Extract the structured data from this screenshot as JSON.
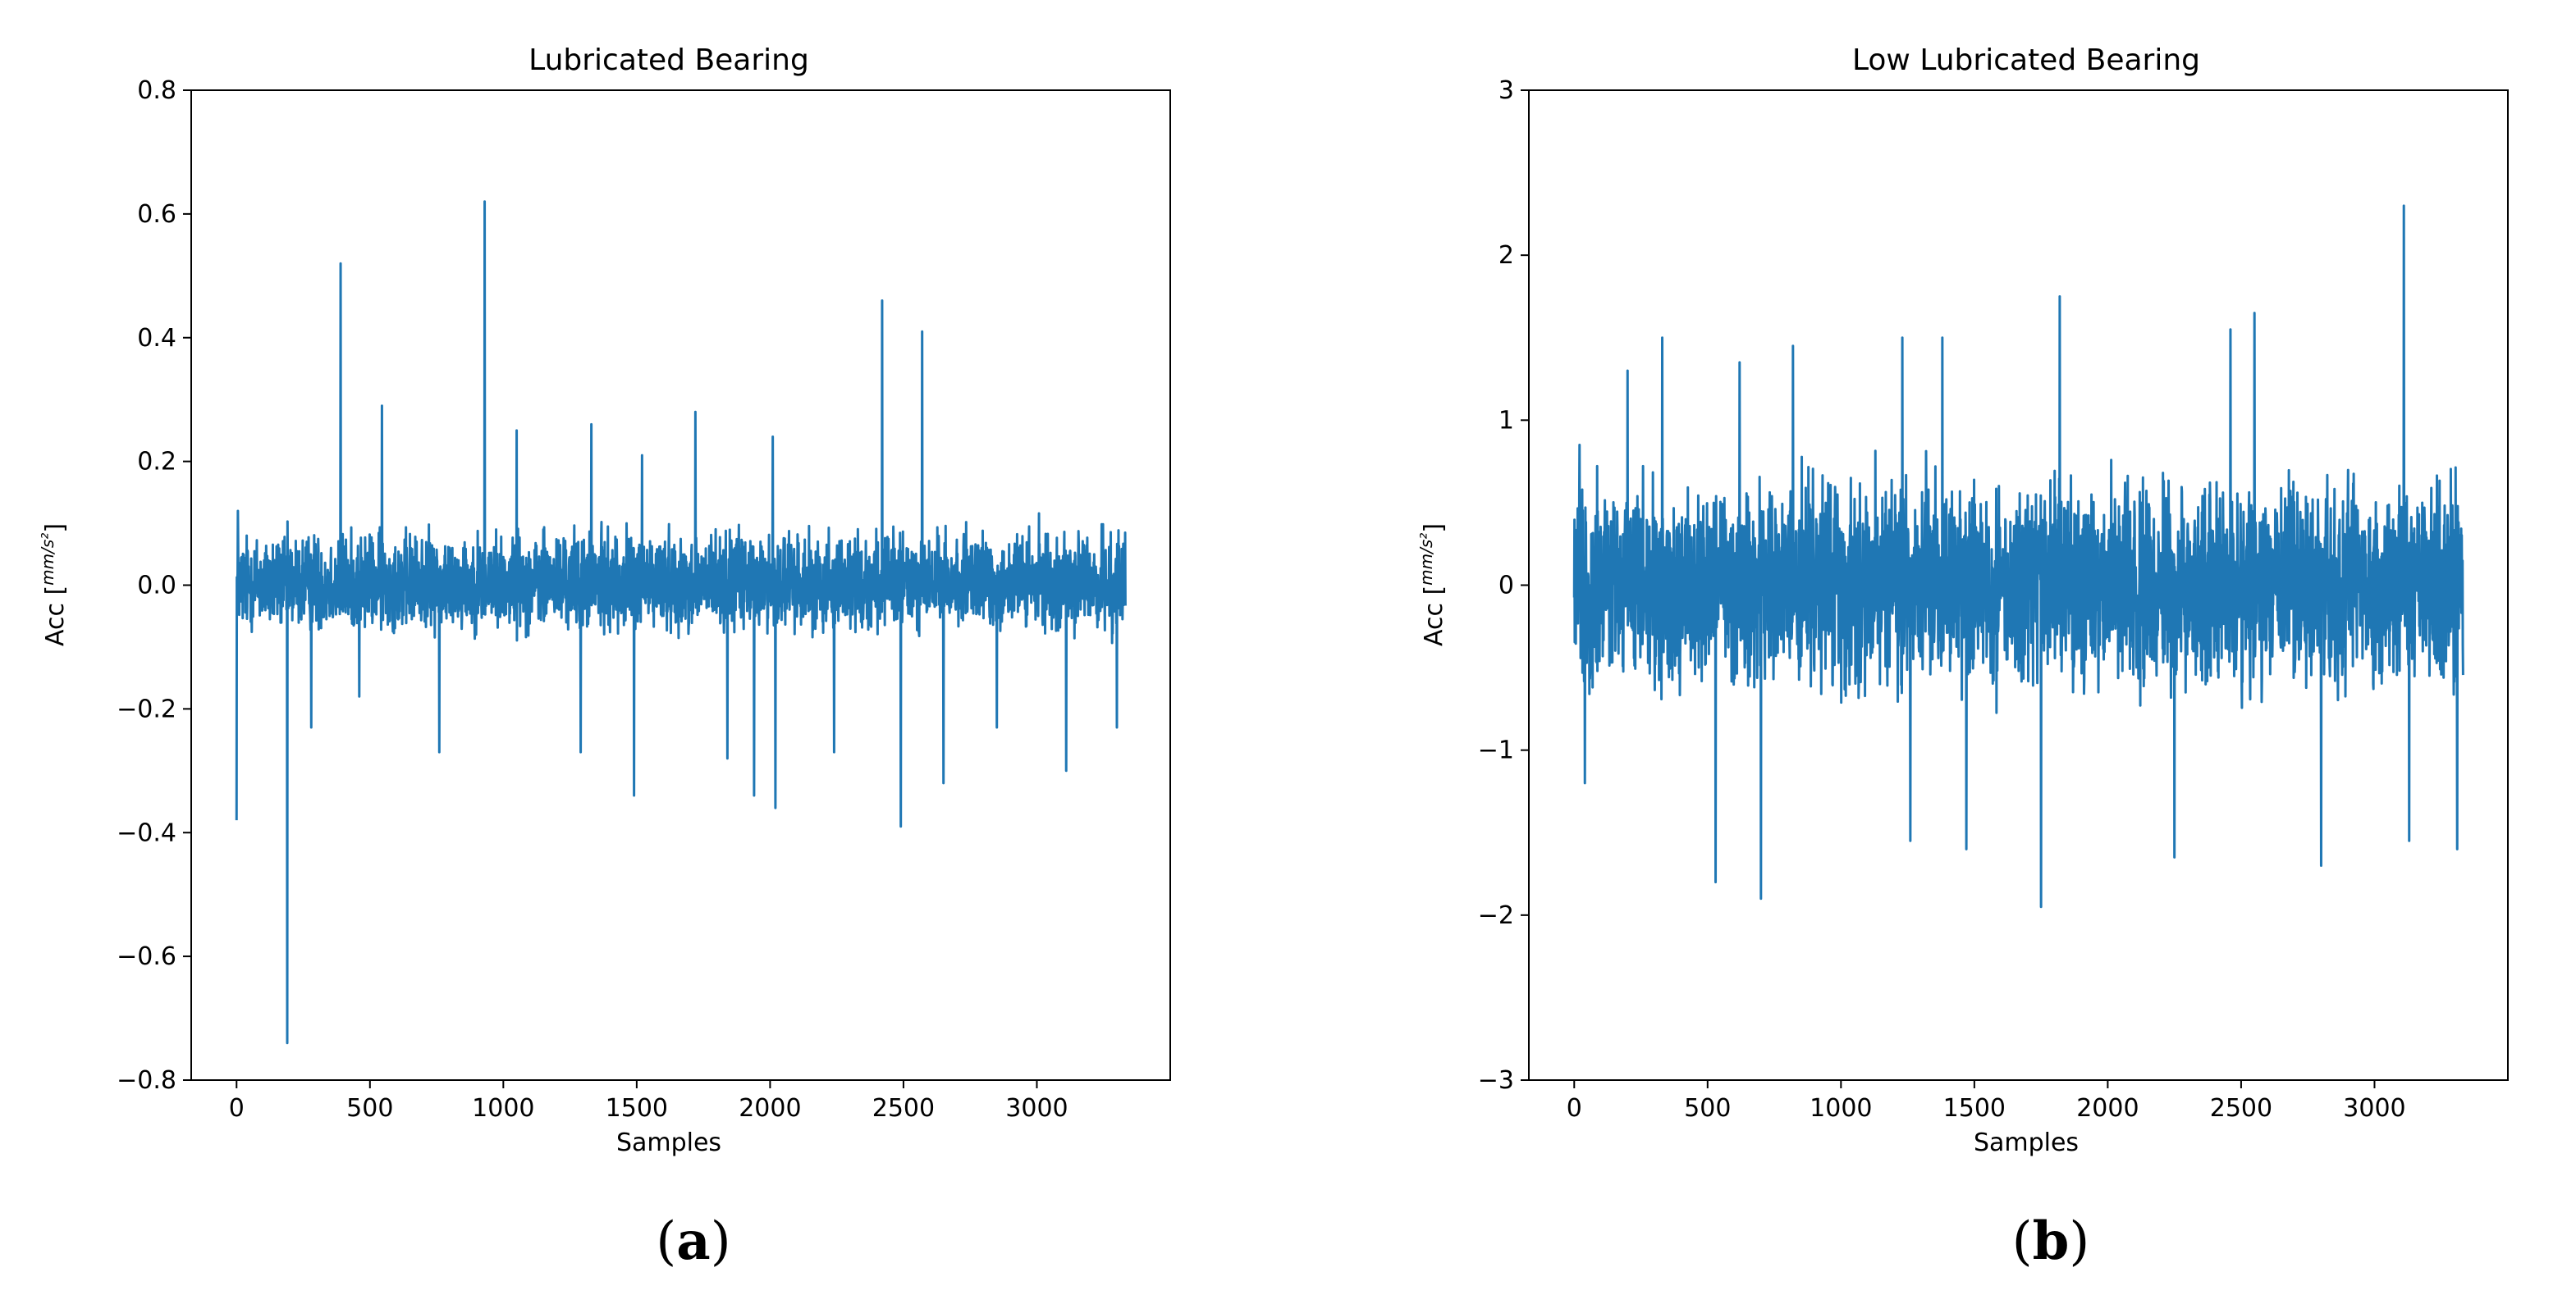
{
  "figure": {
    "captions": [
      "(a)",
      "(b)"
    ]
  },
  "chart_data": [
    {
      "type": "line",
      "title": "Lubricated Bearing",
      "xlabel": "Samples",
      "ylabel": "Acc [mm/s²]",
      "xlim": [
        -170,
        3500
      ],
      "ylim": [
        -0.8,
        0.8
      ],
      "xticks": [
        0,
        500,
        1000,
        1500,
        2000,
        2500,
        3000
      ],
      "xtick_labels": [
        "0",
        "500",
        "1000",
        "1500",
        "2000",
        "2500",
        "3000"
      ],
      "yticks": [
        -0.8,
        -0.6,
        -0.4,
        -0.2,
        0.0,
        0.2,
        0.4,
        0.6,
        0.8
      ],
      "ytick_labels": [
        "−0.8",
        "−0.6",
        "−0.4",
        "−0.2",
        "0.0",
        "0.2",
        "0.4",
        "0.6",
        "0.8"
      ],
      "color": "#1f77b4",
      "grid": false,
      "series": [
        {
          "name": "Lubricated Bearing",
          "n_samples": 3333,
          "noise_band": [
            -0.1,
            0.12
          ],
          "peaks": [
            [
              0,
              -0.38
            ],
            [
              5,
              0.12
            ],
            [
              190,
              -0.74
            ],
            [
              280,
              -0.23
            ],
            [
              390,
              0.52
            ],
            [
              460,
              -0.18
            ],
            [
              545,
              0.29
            ],
            [
              760,
              -0.27
            ],
            [
              930,
              0.62
            ],
            [
              1050,
              0.25
            ],
            [
              1290,
              -0.27
            ],
            [
              1330,
              0.26
            ],
            [
              1490,
              -0.34
            ],
            [
              1520,
              0.21
            ],
            [
              1720,
              0.28
            ],
            [
              1840,
              -0.28
            ],
            [
              1940,
              -0.34
            ],
            [
              2010,
              0.24
            ],
            [
              2020,
              -0.36
            ],
            [
              2240,
              -0.27
            ],
            [
              2420,
              0.46
            ],
            [
              2490,
              -0.39
            ],
            [
              2570,
              0.41
            ],
            [
              2650,
              -0.32
            ],
            [
              2850,
              -0.23
            ],
            [
              3110,
              -0.3
            ],
            [
              3300,
              -0.23
            ]
          ]
        }
      ],
      "caption": "(a)"
    },
    {
      "type": "line",
      "title": "Low Lubricated Bearing",
      "xlabel": "Samples",
      "ylabel": "Acc [mm/s²]",
      "xlim": [
        -170,
        3500
      ],
      "ylim": [
        -3,
        3
      ],
      "xticks": [
        0,
        500,
        1000,
        1500,
        2000,
        2500,
        3000
      ],
      "xtick_labels": [
        "0",
        "500",
        "1000",
        "1500",
        "2000",
        "2500",
        "3000"
      ],
      "yticks": [
        -3,
        -2,
        -1,
        0,
        1,
        2,
        3
      ],
      "ytick_labels": [
        "−3",
        "−2",
        "−1",
        "0",
        "1",
        "2",
        "3"
      ],
      "color": "#1f77b4",
      "grid": false,
      "series": [
        {
          "name": "Low Lubricated Bearing",
          "n_samples": 3333,
          "noise_band": [
            -0.85,
            0.85
          ],
          "peaks": [
            [
              20,
              0.85
            ],
            [
              40,
              -1.2
            ],
            [
              200,
              1.3
            ],
            [
              330,
              1.5
            ],
            [
              530,
              -1.8
            ],
            [
              620,
              1.35
            ],
            [
              700,
              -1.9
            ],
            [
              820,
              1.45
            ],
            [
              1230,
              1.5
            ],
            [
              1260,
              -1.55
            ],
            [
              1380,
              1.5
            ],
            [
              1470,
              -1.6
            ],
            [
              1750,
              -1.95
            ],
            [
              1820,
              1.75
            ],
            [
              2250,
              -1.65
            ],
            [
              2460,
              1.55
            ],
            [
              2550,
              1.65
            ],
            [
              2800,
              -1.7
            ],
            [
              3110,
              2.3
            ],
            [
              3130,
              -1.55
            ],
            [
              3310,
              -1.6
            ]
          ]
        }
      ],
      "caption": "(b)"
    }
  ]
}
